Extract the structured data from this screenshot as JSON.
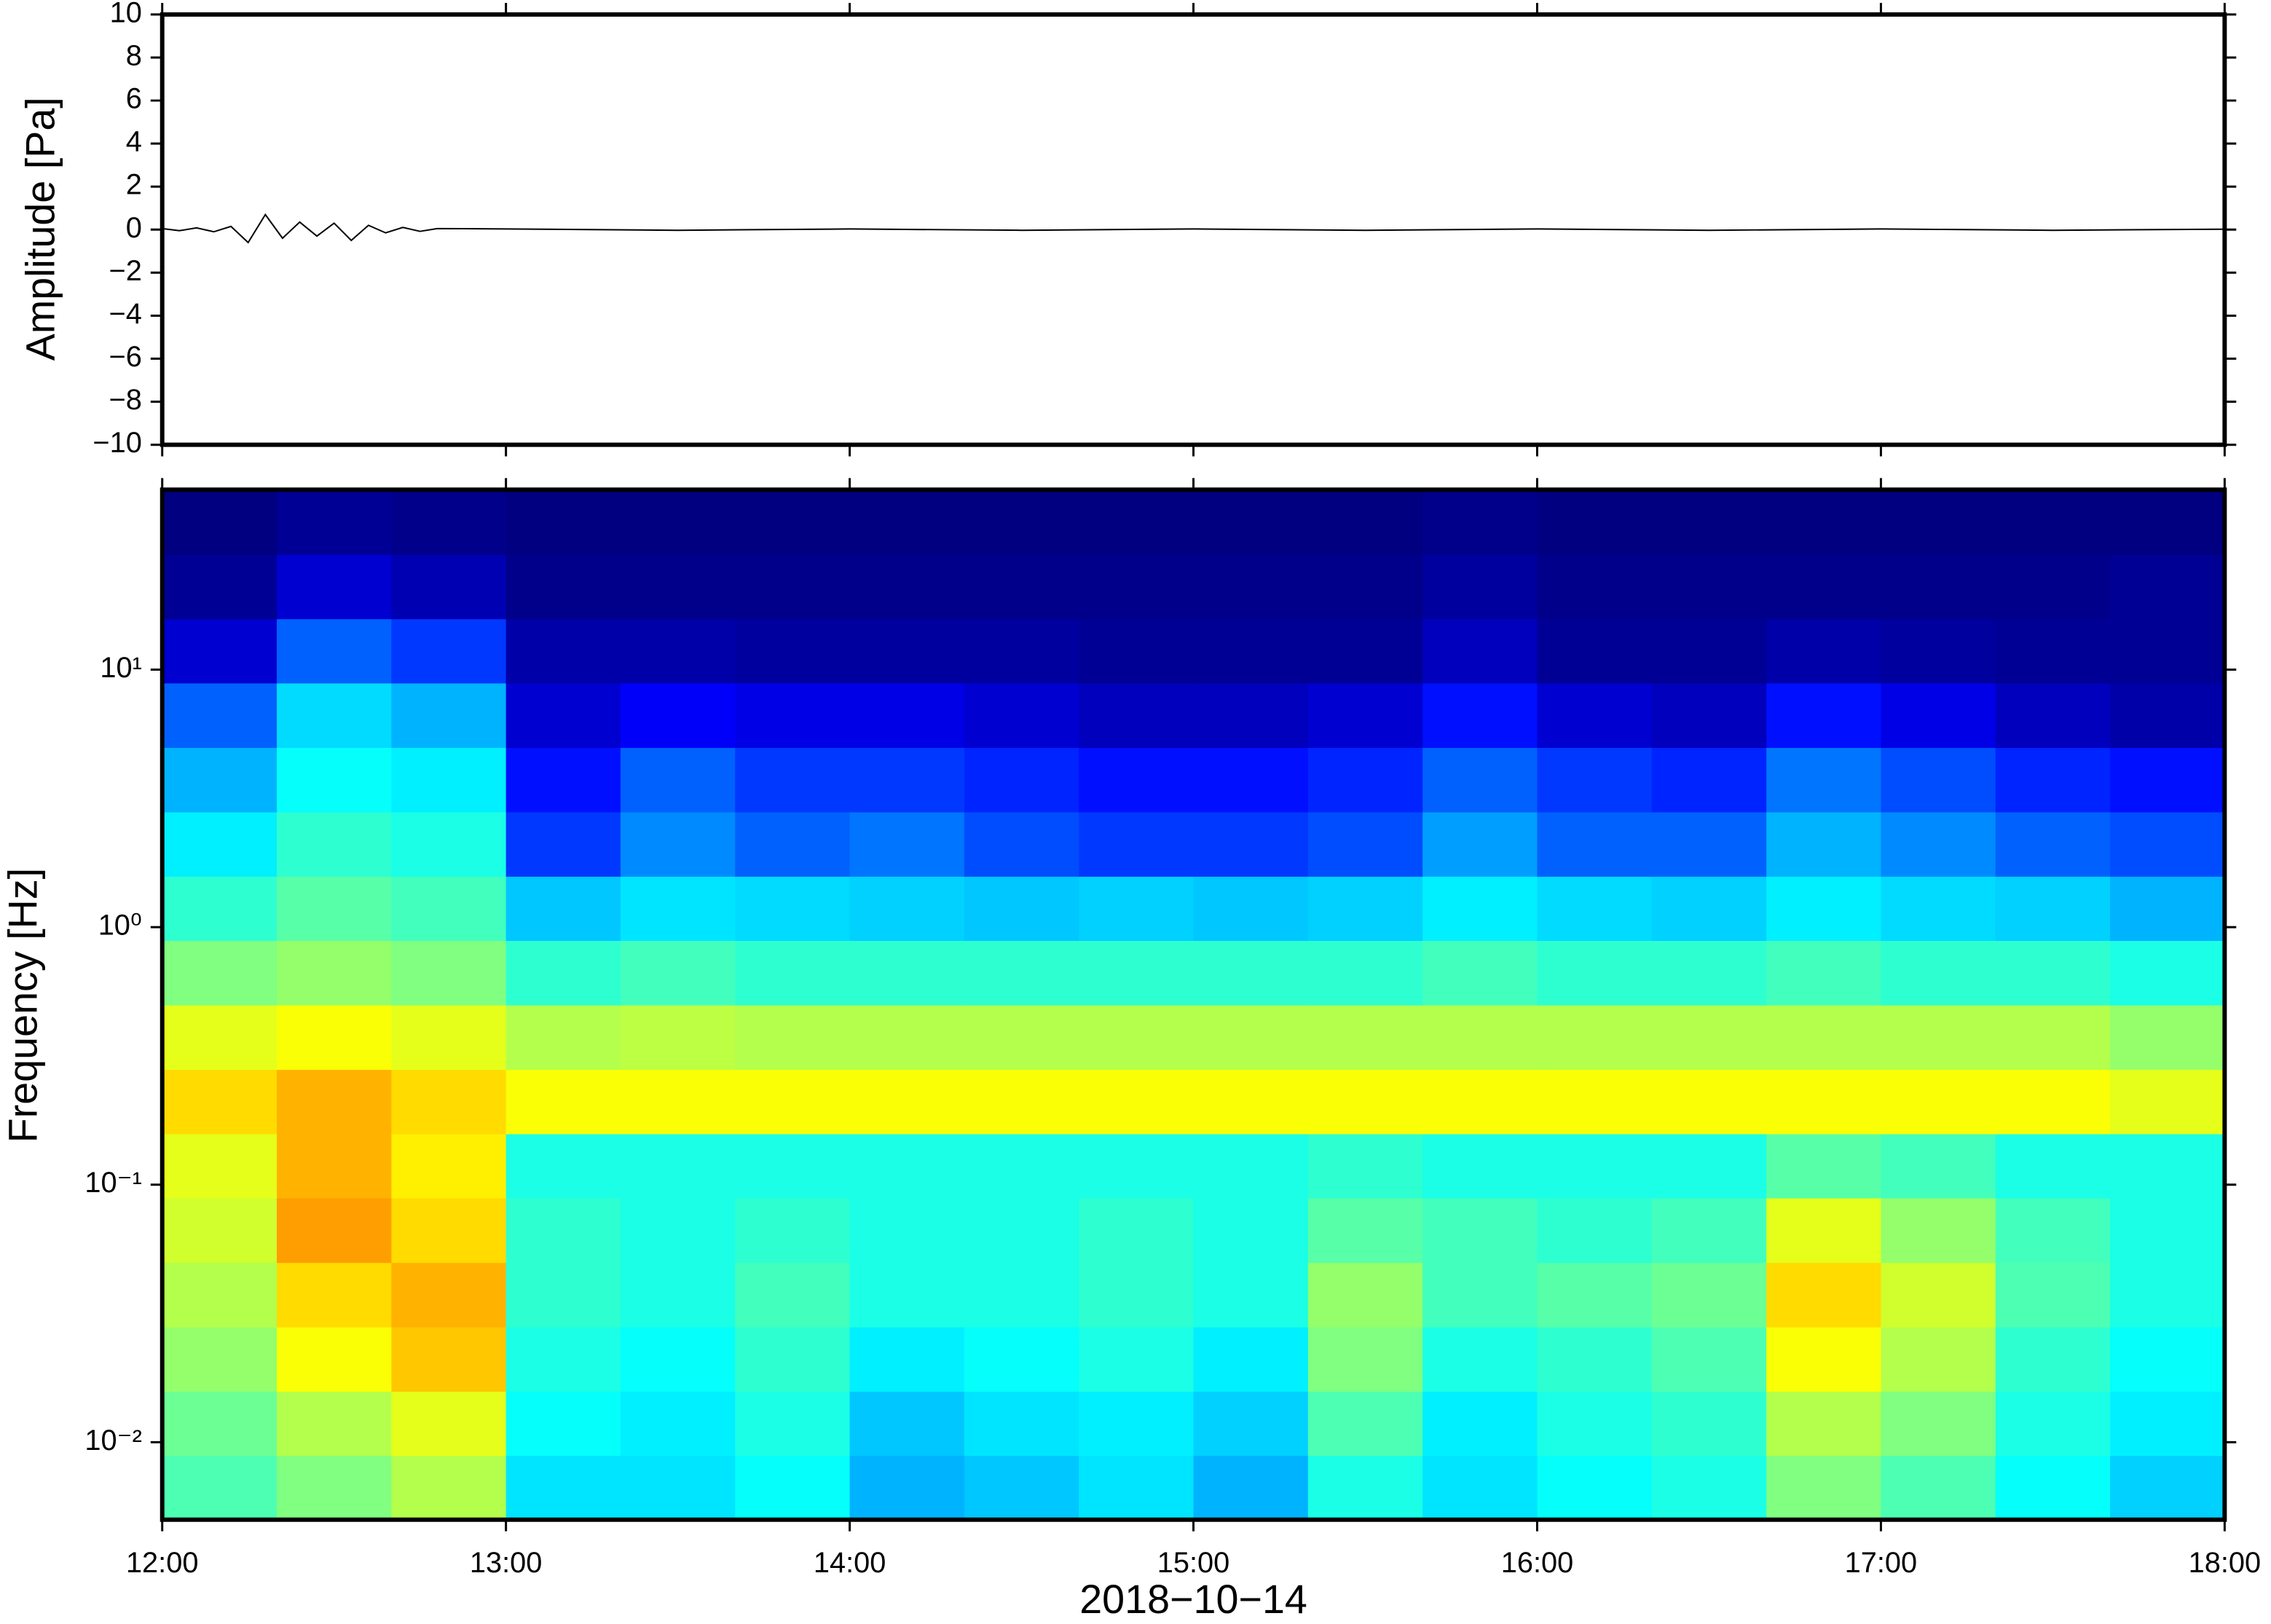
{
  "chart_data": [
    {
      "type": "line",
      "ylabel": "Amplitude [Pa]",
      "color": "#000000",
      "x": [
        12.0,
        12.05,
        12.1,
        12.15,
        12.2,
        12.25,
        12.3,
        12.35,
        12.4,
        12.45,
        12.5,
        12.55,
        12.6,
        12.65,
        12.7,
        12.75,
        12.8,
        13.0,
        13.5,
        14.0,
        14.5,
        15.0,
        15.5,
        16.0,
        16.5,
        17.0,
        17.5,
        18.0
      ],
      "values": [
        0.05,
        -0.05,
        0.08,
        -0.1,
        0.15,
        -0.6,
        0.7,
        -0.4,
        0.35,
        -0.3,
        0.3,
        -0.5,
        0.2,
        -0.15,
        0.1,
        -0.08,
        0.05,
        0.03,
        -0.03,
        0.03,
        -0.03,
        0.03,
        -0.03,
        0.03,
        -0.03,
        0.03,
        -0.03,
        0.02
      ],
      "xlim": [
        12,
        18
      ],
      "xticks": [
        12,
        13,
        14,
        15,
        16,
        17,
        18
      ],
      "ylim": [
        -10,
        10
      ],
      "yticks": [
        {
          "value": -10,
          "label": "−10"
        },
        {
          "value": -8,
          "label": "−8"
        },
        {
          "value": -6,
          "label": "−6"
        },
        {
          "value": -4,
          "label": "−4"
        },
        {
          "value": -2,
          "label": "−2"
        },
        0,
        2,
        4,
        6,
        8,
        10
      ]
    },
    {
      "type": "heatmap",
      "ylabel": "Frequency [Hz]",
      "xlabel": "2018−10−14",
      "colormap": "jet",
      "zlim": [
        0,
        100
      ],
      "log_y": true,
      "xlim": [
        12,
        18
      ],
      "xticks": [
        {
          "value": 12,
          "label": "12:00"
        },
        {
          "value": 13,
          "label": "13:00"
        },
        {
          "value": 14,
          "label": "14:00"
        },
        {
          "value": 15,
          "label": "15:00"
        },
        {
          "value": 16,
          "label": "16:00"
        },
        {
          "value": 17,
          "label": "17:00"
        },
        {
          "value": 18,
          "label": "18:00"
        }
      ],
      "ylim": [
        0.005,
        50
      ],
      "yticks": [
        {
          "value": 0.01,
          "label": "10⁻²"
        },
        {
          "value": 0.1,
          "label": "10⁻¹"
        },
        {
          "value": 1,
          "label": "10⁰"
        },
        {
          "value": 10,
          "label": "10¹"
        }
      ],
      "x_edges": [
        12,
        12.3333,
        12.6667,
        13,
        13.3333,
        13.6667,
        14,
        14.3333,
        14.6667,
        15,
        15.3333,
        15.6667,
        16,
        16.3333,
        16.6667,
        17,
        17.3333,
        17.6667,
        18
      ],
      "y_edges": [
        0.005,
        0.0089,
        0.0158,
        0.0281,
        0.05,
        0.089,
        0.158,
        0.281,
        0.5,
        0.89,
        1.58,
        2.81,
        5,
        8.9,
        15.8,
        28.1,
        50
      ],
      "z": [
        [
          45,
          50,
          55,
          35,
          35,
          38,
          30,
          32,
          35,
          30,
          40,
          35,
          38,
          40,
          50,
          45,
          38,
          33
        ],
        [
          48,
          55,
          60,
          38,
          36,
          40,
          32,
          35,
          36,
          33,
          45,
          36,
          40,
          42,
          55,
          50,
          40,
          36
        ],
        [
          52,
          62,
          68,
          40,
          38,
          42,
          36,
          38,
          40,
          36,
          50,
          40,
          42,
          45,
          62,
          55,
          42,
          38
        ],
        [
          55,
          66,
          70,
          42,
          40,
          44,
          40,
          40,
          42,
          40,
          52,
          44,
          46,
          48,
          66,
          58,
          45,
          40
        ],
        [
          58,
          72,
          66,
          42,
          40,
          42,
          40,
          40,
          42,
          40,
          46,
          44,
          42,
          44,
          60,
          52,
          44,
          40
        ],
        [
          60,
          70,
          64,
          40,
          40,
          40,
          40,
          40,
          40,
          40,
          42,
          40,
          40,
          40,
          46,
          44,
          40,
          40
        ],
        [
          66,
          70,
          66,
          62,
          62,
          62,
          62,
          62,
          62,
          62,
          62,
          62,
          62,
          62,
          62,
          62,
          62,
          60
        ],
        [
          60,
          62,
          60,
          55,
          56,
          55,
          55,
          55,
          55,
          55,
          55,
          55,
          55,
          55,
          55,
          55,
          55,
          52
        ],
        [
          50,
          52,
          50,
          42,
          44,
          42,
          42,
          42,
          42,
          42,
          42,
          44,
          42,
          42,
          44,
          42,
          42,
          40
        ],
        [
          42,
          46,
          44,
          32,
          35,
          34,
          33,
          32,
          33,
          32,
          33,
          36,
          34,
          33,
          36,
          34,
          33,
          30
        ],
        [
          36,
          42,
          40,
          18,
          26,
          22,
          24,
          20,
          18,
          18,
          20,
          28,
          22,
          22,
          30,
          26,
          22,
          20
        ],
        [
          30,
          38,
          36,
          14,
          22,
          18,
          18,
          16,
          14,
          14,
          16,
          22,
          18,
          16,
          24,
          20,
          16,
          14
        ],
        [
          22,
          34,
          30,
          8,
          12,
          10,
          10,
          8,
          6,
          6,
          8,
          14,
          8,
          6,
          14,
          10,
          6,
          4
        ],
        [
          8,
          22,
          18,
          4,
          4,
          3,
          3,
          3,
          2,
          2,
          2,
          6,
          2,
          2,
          4,
          3,
          2,
          2
        ],
        [
          2,
          8,
          5,
          1,
          1,
          1,
          1,
          1,
          1,
          1,
          1,
          3,
          1,
          1,
          1,
          1,
          1,
          2
        ],
        [
          0,
          2,
          1,
          0,
          0,
          0,
          0,
          0,
          0,
          0,
          0,
          1,
          0,
          0,
          0,
          0,
          0,
          0
        ]
      ]
    }
  ]
}
